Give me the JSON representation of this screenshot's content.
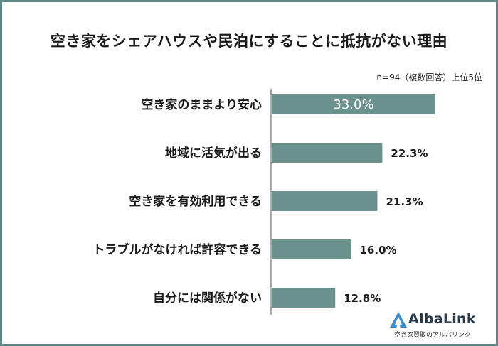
{
  "chart_data": {
    "type": "bar",
    "orientation": "horizontal",
    "title": "空き家をシェアハウスや民泊にすることに抵抗がない理由",
    "note": "n=94（複数回答）上位5位",
    "categories": [
      "空き家のままより安心",
      "地域に活気が出る",
      "空き家を有効利用できる",
      "トラブルがなければ許容できる",
      "自分には関係がない"
    ],
    "values": [
      33.0,
      22.3,
      21.3,
      16.0,
      12.8
    ],
    "value_labels": [
      "33.0%",
      "22.3%",
      "21.3%",
      "16.0%",
      "12.8%"
    ],
    "xlim": [
      0,
      40
    ],
    "grid": false,
    "bar_color": "#6b928c"
  },
  "logo": {
    "name": "AlbaLink",
    "tagline": "空き家買取のアルバリンク"
  }
}
